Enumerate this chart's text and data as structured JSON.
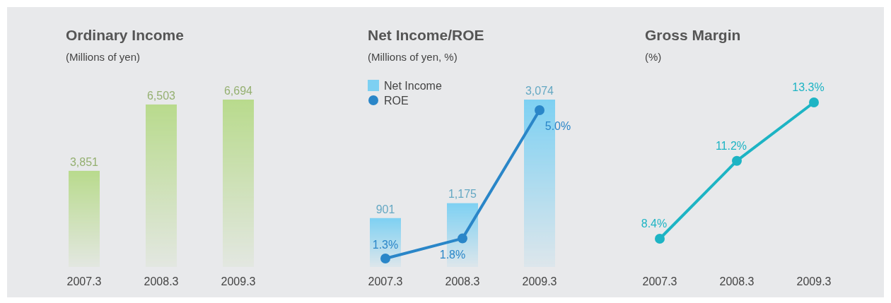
{
  "chart_data": [
    {
      "type": "bar",
      "title": "Ordinary Income",
      "subtitle": "(Millions of yen)",
      "categories": [
        "2007.3",
        "2008.3",
        "2009.3"
      ],
      "values": [
        3851,
        6503,
        6694
      ],
      "value_labels": [
        "3,851",
        "6,503",
        "6,694"
      ],
      "color": "#b8da8c"
    },
    {
      "type": "bar",
      "title": "Net Income/ROE",
      "subtitle": "(Millions of yen, %)",
      "categories": [
        "2007.3",
        "2008.3",
        "2009.3"
      ],
      "legend": "top left",
      "marker": "circle",
      "series": [
        {
          "name": "Net Income",
          "color": "#7dd0f2",
          "values": [
            901,
            1175,
            3074
          ],
          "value_labels": [
            "901",
            "1,175",
            "3,074"
          ]
        },
        {
          "name": "ROE",
          "type": "line",
          "axis": "y2",
          "color": "#2a86c8",
          "values": [
            1.3,
            1.8,
            5.0
          ],
          "value_labels": [
            "1.3%",
            "1.8%",
            "5.0%"
          ]
        }
      ]
    },
    {
      "type": "line",
      "title": "Gross Margin",
      "subtitle": "(%)",
      "categories": [
        "2007.3",
        "2008.3",
        "2009.3"
      ],
      "values": [
        8.4,
        11.2,
        13.3
      ],
      "value_labels": [
        "8.4%",
        "11.2%",
        "13.3%"
      ],
      "color": "#1db4c4",
      "marker": "circle"
    }
  ]
}
